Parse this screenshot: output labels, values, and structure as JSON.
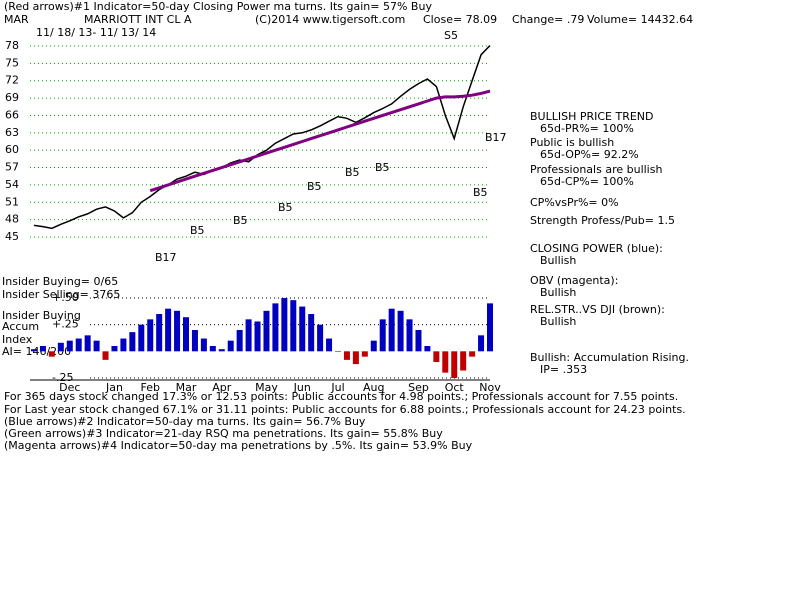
{
  "header": {
    "line1": "(Red arrows)#1 Indicator=50-day Closing Power ma turns.  Its gain= 57% Buy",
    "symbol": "MAR",
    "name": "MARRIOTT INT CL A",
    "copyright": "(C)2014 www.tigersoft.com",
    "close": "Close= 78.09",
    "change": "Change= .79",
    "volume": "Volume= 14432.64",
    "dates": "11/ 18/ 13- 11/ 13/ 14"
  },
  "side_notes": [
    "BULLISH PRICE TREND",
    "65d-PR%= 100%",
    "Public is bullish",
    "65d-OP%= 92.2%",
    "Professionals are bullish",
    "65d-CP%= 100%",
    "CP%vsPr%=  0%",
    "Strength Profess/Pub= 1.5",
    "CLOSING POWER (blue):",
    "Bullish",
    "OBV (magenta):",
    "Bullish",
    "REL.STR..VS DJI (brown):",
    "Bullish",
    "Bullish: Accumulation Rising.",
    "IP=  .353"
  ],
  "panel_notes": [
    "Insider Buying= 0/65",
    "Insider Selling= 3765",
    "Insider Buying",
    "Accum",
    "Index",
    "AI= 146/200"
  ],
  "footer": [
    "For 365 days stock changed  17.3% or  12.53 points:  Public accounts for  4.98 points.;  Professionals account for  7.55 points.",
    "For Last year stock changed  67.1% or  31.11 points:  Public accounts for  6.88 points.;  Professionals account for  24.23 points.",
    "(Blue arrows)#2 Indicator=50-day ma turns.  Its gain= 56.7% Buy",
    "(Green arrows)#3 Indicator=21-day RSQ ma penetrations.  Its gain= 55.8% Buy",
    "(Magenta arrows)#4 Indicator=50-day ma penetrations by .5%.  Its gain= 53.9% Buy"
  ],
  "chart_data": [
    {
      "type": "line",
      "categories": [
        null,
        null,
        null,
        null,
        "Dec",
        null,
        null,
        null,
        null,
        "Jan",
        null,
        null,
        null,
        "Feb",
        null,
        null,
        null,
        "Mar",
        null,
        null,
        null,
        "Apr",
        null,
        null,
        null,
        null,
        "May",
        null,
        null,
        null,
        "Jun",
        null,
        null,
        null,
        "Jul",
        null,
        null,
        null,
        "Aug",
        null,
        null,
        null,
        null,
        "Sep",
        null,
        null,
        null,
        "Oct",
        null,
        null,
        null,
        "Nov"
      ],
      "series": [
        {
          "color": "#000000",
          "values": [
            47.0,
            46.8,
            46.5,
            47.2,
            47.8,
            48.5,
            49.0,
            49.8,
            50.2,
            49.5,
            48.3,
            49.2,
            51.0,
            52.0,
            53.2,
            54.0,
            55.0,
            55.5,
            56.2,
            55.8,
            56.5,
            57.0,
            57.8,
            58.3,
            58.0,
            59.2,
            60.0,
            61.2,
            62.0,
            62.8,
            63.0,
            63.5,
            64.2,
            65.0,
            65.8,
            65.5,
            64.8,
            65.6,
            66.5,
            67.2,
            68.0,
            69.3,
            70.5,
            71.5,
            72.3,
            71.0,
            66.0,
            62.0,
            67.5,
            72.0,
            76.5,
            78.09
          ]
        },
        {
          "color": "#800080",
          "values": [
            null,
            null,
            null,
            null,
            null,
            null,
            null,
            null,
            null,
            null,
            null,
            null,
            null,
            53,
            53.5,
            54,
            54.5,
            55,
            55.5,
            56,
            56.5,
            57,
            57.5,
            58,
            58.5,
            59,
            59.5,
            60,
            60.5,
            61,
            61.5,
            62,
            62.5,
            63,
            63.5,
            64,
            64.5,
            65,
            65.5,
            66,
            66.5,
            67,
            67.5,
            68,
            68.5,
            69,
            69.2,
            69.2,
            69.3,
            69.5,
            69.8,
            70.2
          ]
        }
      ],
      "ylim": [
        43,
        80
      ],
      "yticks": [
        45,
        48,
        51,
        54,
        57,
        60,
        63,
        66,
        69,
        72,
        75,
        78
      ],
      "grid": true,
      "grid_color": "#00a000",
      "annotations": [
        "S5",
        "B17",
        "B5",
        "B5",
        "B5",
        "B5",
        "B5",
        "B5",
        "B17",
        "B5"
      ]
    },
    {
      "type": "bar",
      "color_up": "#0000c0",
      "color_down": "#c00000",
      "values": [
        0.02,
        0.05,
        -0.05,
        0.08,
        0.1,
        0.12,
        0.15,
        0.1,
        -0.08,
        0.05,
        0.12,
        0.18,
        0.25,
        0.3,
        0.35,
        0.4,
        0.38,
        0.32,
        0.2,
        0.12,
        0.05,
        0.02,
        0.1,
        0.2,
        0.3,
        0.28,
        0.38,
        0.45,
        0.5,
        0.48,
        0.42,
        0.35,
        0.25,
        0.12,
        0.0,
        -0.08,
        -0.12,
        -0.05,
        0.1,
        0.3,
        0.4,
        0.38,
        0.3,
        0.2,
        0.05,
        -0.1,
        -0.2,
        -0.25,
        -0.18,
        -0.05,
        0.15,
        0.45
      ],
      "ylim": [
        -0.3,
        0.55
      ],
      "yticks": [
        {
          "value": 0.5,
          "label": "+.50"
        },
        {
          "value": 0.25,
          "label": "+.25"
        },
        {
          "value": -0.25,
          "label": "-.25"
        }
      ]
    }
  ]
}
